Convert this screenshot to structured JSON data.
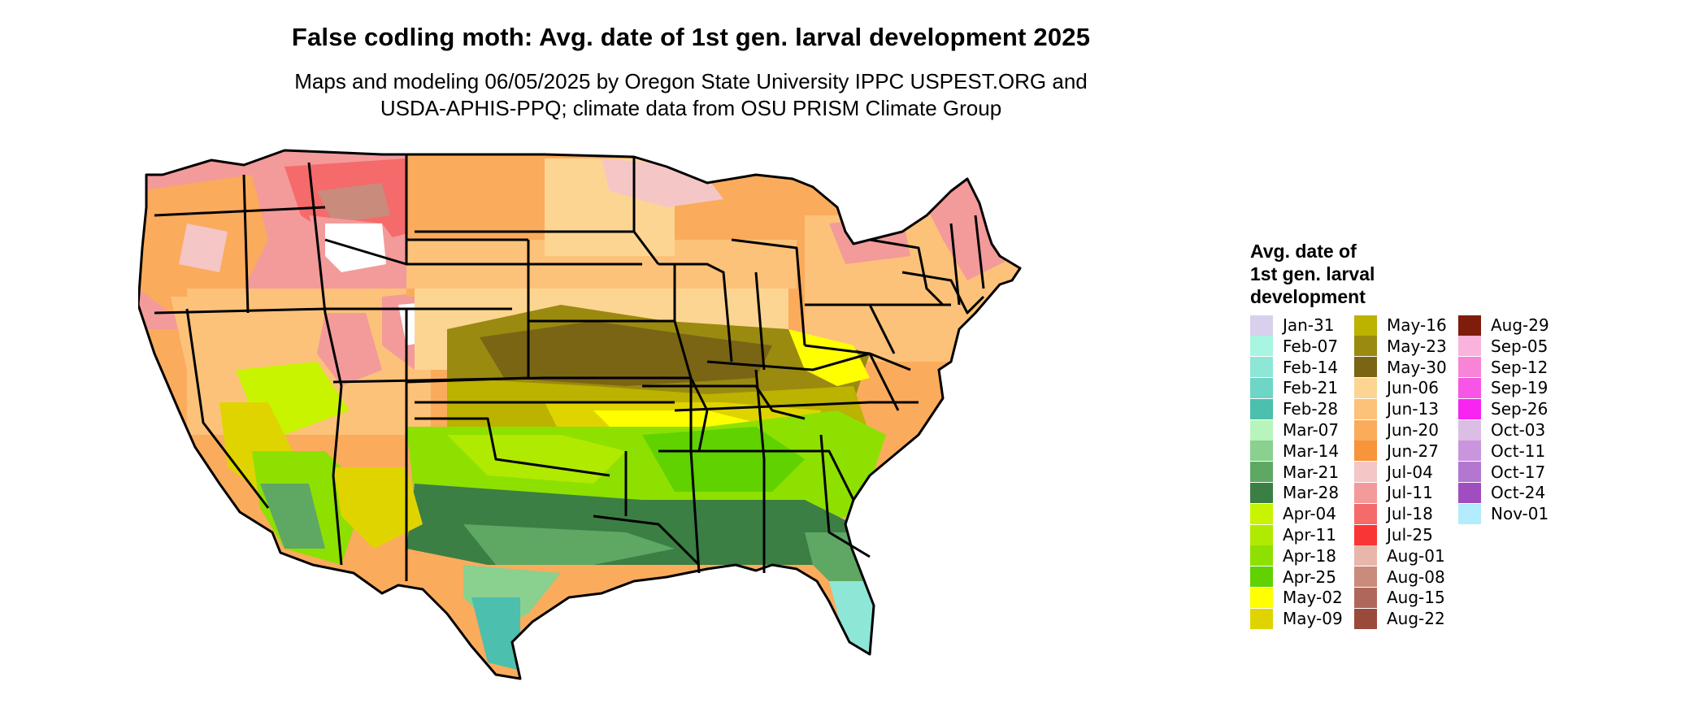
{
  "title": "False codling moth: Avg. date of 1st gen. larval development 2025",
  "subtitle_lines": [
    "Maps and modeling 06/05/2025 by Oregon State University IPPC USPEST.ORG and",
    "USDA-APHIS-PPQ; climate data from OSU PRISM Climate Group"
  ],
  "legend": {
    "title_lines": [
      "Avg. date of",
      "1st gen. larval",
      "development"
    ],
    "items": [
      {
        "label": "Jan-31",
        "color": "#d9d0ee"
      },
      {
        "label": "Feb-07",
        "color": "#a8f5e1"
      },
      {
        "label": "Feb-14",
        "color": "#8ee6d6"
      },
      {
        "label": "Feb-21",
        "color": "#6dd6c6"
      },
      {
        "label": "Feb-28",
        "color": "#4cbfae"
      },
      {
        "label": "Mar-07",
        "color": "#b7f5bd"
      },
      {
        "label": "Mar-14",
        "color": "#8ad08f"
      },
      {
        "label": "Mar-21",
        "color": "#5ea864"
      },
      {
        "label": "Mar-28",
        "color": "#3b7f44"
      },
      {
        "label": "Apr-04",
        "color": "#c8f400"
      },
      {
        "label": "Apr-11",
        "color": "#b0ea00"
      },
      {
        "label": "Apr-18",
        "color": "#8ee000"
      },
      {
        "label": "Apr-25",
        "color": "#5fd200"
      },
      {
        "label": "May-02",
        "color": "#ffff00"
      },
      {
        "label": "May-09",
        "color": "#e0d400"
      },
      {
        "label": "May-16",
        "color": "#bcb200"
      },
      {
        "label": "May-23",
        "color": "#9a8a10"
      },
      {
        "label": "May-30",
        "color": "#7a6514"
      },
      {
        "label": "Jun-06",
        "color": "#fdd592"
      },
      {
        "label": "Jun-13",
        "color": "#fcc279"
      },
      {
        "label": "Jun-20",
        "color": "#fbab5c"
      },
      {
        "label": "Jun-27",
        "color": "#f8943a"
      },
      {
        "label": "Jul-04",
        "color": "#f5c6c6"
      },
      {
        "label": "Jul-11",
        "color": "#f39a9a"
      },
      {
        "label": "Jul-18",
        "color": "#f56a6a"
      },
      {
        "label": "Jul-25",
        "color": "#f93535"
      },
      {
        "label": "Aug-01",
        "color": "#e8b6aa"
      },
      {
        "label": "Aug-08",
        "color": "#c98b7c"
      },
      {
        "label": "Aug-15",
        "color": "#b0675b"
      },
      {
        "label": "Aug-22",
        "color": "#9a4a3a"
      },
      {
        "label": "Aug-29",
        "color": "#7e1d0c"
      },
      {
        "label": "Sep-05",
        "color": "#f9b3dd"
      },
      {
        "label": "Sep-12",
        "color": "#f784d6"
      },
      {
        "label": "Sep-19",
        "color": "#f755e6"
      },
      {
        "label": "Sep-26",
        "color": "#f724f2"
      },
      {
        "label": "Oct-03",
        "color": "#dcbde6"
      },
      {
        "label": "Oct-11",
        "color": "#c995dc"
      },
      {
        "label": "Oct-17",
        "color": "#b377d0"
      },
      {
        "label": "Oct-24",
        "color": "#a04dc0"
      },
      {
        "label": "Nov-01",
        "color": "#b3ecfc"
      }
    ]
  }
}
